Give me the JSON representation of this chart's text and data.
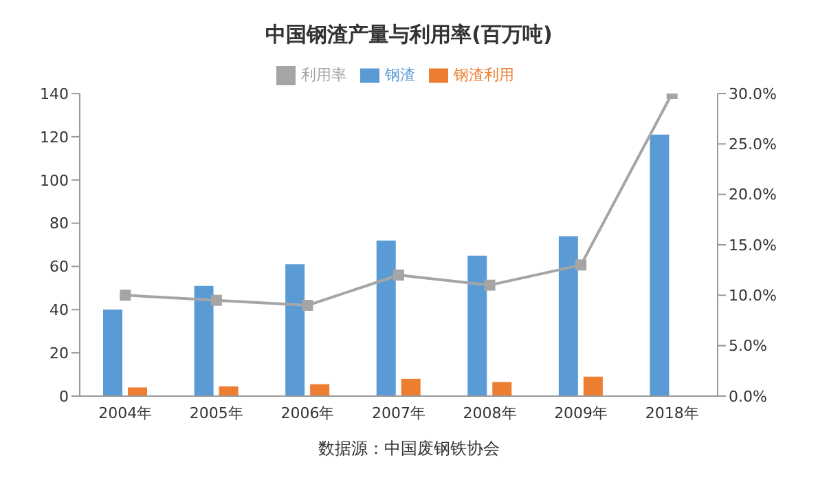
{
  "chart_data": {
    "type": "bar",
    "title": "中国钢渣产量与利用率(百万吨)",
    "categories": [
      "2004年",
      "2005年",
      "2006年",
      "2007年",
      "2008年",
      "2009年",
      "2018年"
    ],
    "series": [
      {
        "name": "钢渣",
        "color": "#5b9bd5",
        "values": [
          40,
          51,
          61,
          72,
          65,
          74,
          121
        ]
      },
      {
        "name": "钢渣利用",
        "color": "#ed7d31",
        "values": [
          4,
          4.5,
          5.5,
          8,
          6.5,
          9,
          null
        ]
      },
      {
        "name": "利用率",
        "type": "line",
        "axis": "y2",
        "color": "#a5a5a5",
        "marker": "square",
        "values": [
          10,
          9.5,
          9,
          12,
          11,
          13,
          30
        ]
      }
    ],
    "ylim": [
      0,
      140
    ],
    "yticks": [
      0,
      20,
      40,
      60,
      80,
      100,
      120,
      140
    ],
    "y2lim": [
      0,
      30
    ],
    "y2ticks": [
      {
        "value": 0,
        "label": "0.0%"
      },
      {
        "value": 5,
        "label": "5.0%"
      },
      {
        "value": 10,
        "label": "10.0%"
      },
      {
        "value": 15,
        "label": "15.0%"
      },
      {
        "value": 20,
        "label": "20.0%"
      },
      {
        "value": 25,
        "label": "25.0%"
      },
      {
        "value": 30,
        "label": "30.0%"
      }
    ],
    "legend": "top",
    "grid": false,
    "annotations": [
      "数据源：中国废钢铁协会"
    ]
  }
}
